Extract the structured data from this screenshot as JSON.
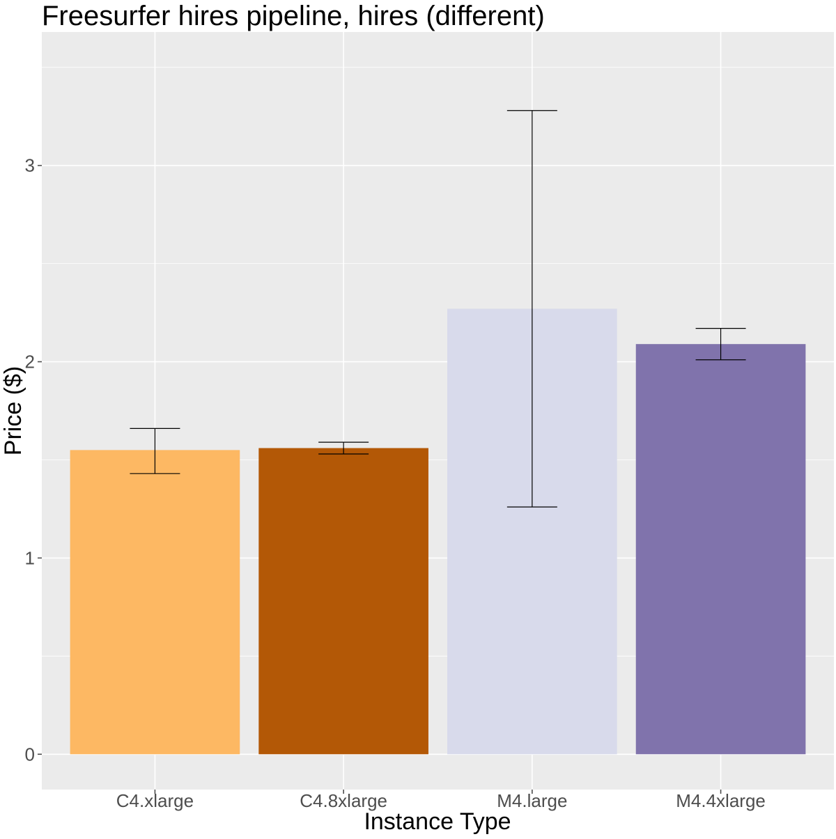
{
  "chart_data": {
    "type": "bar",
    "title": "Freesurfer hires pipeline, hires (different)",
    "xlabel": "Instance Type",
    "ylabel": "Price ($)",
    "categories": [
      "C4.xlarge",
      "C4.8xlarge",
      "M4.large",
      "M4.4xlarge"
    ],
    "values": [
      1.55,
      1.56,
      2.27,
      2.09
    ],
    "error_low": [
      1.43,
      1.53,
      1.26,
      2.01
    ],
    "error_high": [
      1.66,
      1.59,
      3.28,
      2.17
    ],
    "colors": [
      "#fdb863",
      "#b35806",
      "#d8daeb",
      "#8073ac"
    ],
    "yticks": [
      0,
      1,
      2,
      3
    ],
    "ytick_labels": [
      "0",
      "1",
      "2",
      "3"
    ],
    "ylim": [
      -0.18,
      3.68
    ],
    "panel_background": "#ebebeb",
    "grid": true,
    "legend": "none"
  }
}
